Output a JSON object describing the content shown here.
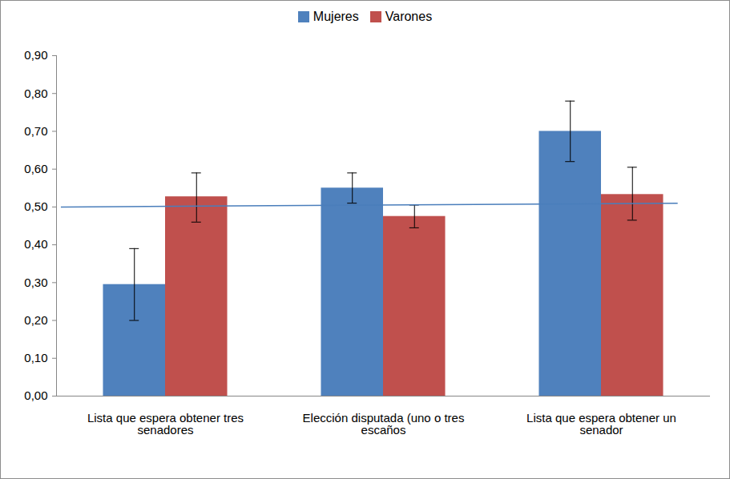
{
  "chart_data": {
    "type": "bar",
    "categories": [
      "Lista que espera obtener tres senadores",
      "Elección disputada (uno o tres escaños",
      "Lista que espera obtener un senador"
    ],
    "series": [
      {
        "name": "Mujeres",
        "color": "#4f81bd",
        "values": [
          0.295,
          0.55,
          0.7
        ],
        "error_bars": [
          [
            0.2,
            0.39
          ],
          [
            0.51,
            0.59
          ],
          [
            0.62,
            0.78
          ]
        ]
      },
      {
        "name": "Varones",
        "color": "#c0504d",
        "values": [
          0.527,
          0.475,
          0.533
        ],
        "error_bars": [
          [
            0.46,
            0.59
          ],
          [
            0.445,
            0.505
          ],
          [
            0.465,
            0.605
          ]
        ]
      }
    ],
    "reference_line": {
      "start": 0.5,
      "end": 0.51,
      "color": "#4a7ebb"
    },
    "ylim": [
      0,
      0.9
    ],
    "yticks": [
      {
        "value": 0,
        "label": "0,00"
      },
      {
        "value": 0.1,
        "label": "0,10"
      },
      {
        "value": 0.2,
        "label": "0,20"
      },
      {
        "value": 0.3,
        "label": "0,30"
      },
      {
        "value": 0.4,
        "label": "0,40"
      },
      {
        "value": 0.5,
        "label": "0,50"
      },
      {
        "value": 0.6,
        "label": "0,60"
      },
      {
        "value": 0.7,
        "label": "0,70"
      },
      {
        "value": 0.8,
        "label": "0,80"
      },
      {
        "value": 0.9,
        "label": "0,90"
      }
    ],
    "grid": false,
    "legend": "top"
  }
}
